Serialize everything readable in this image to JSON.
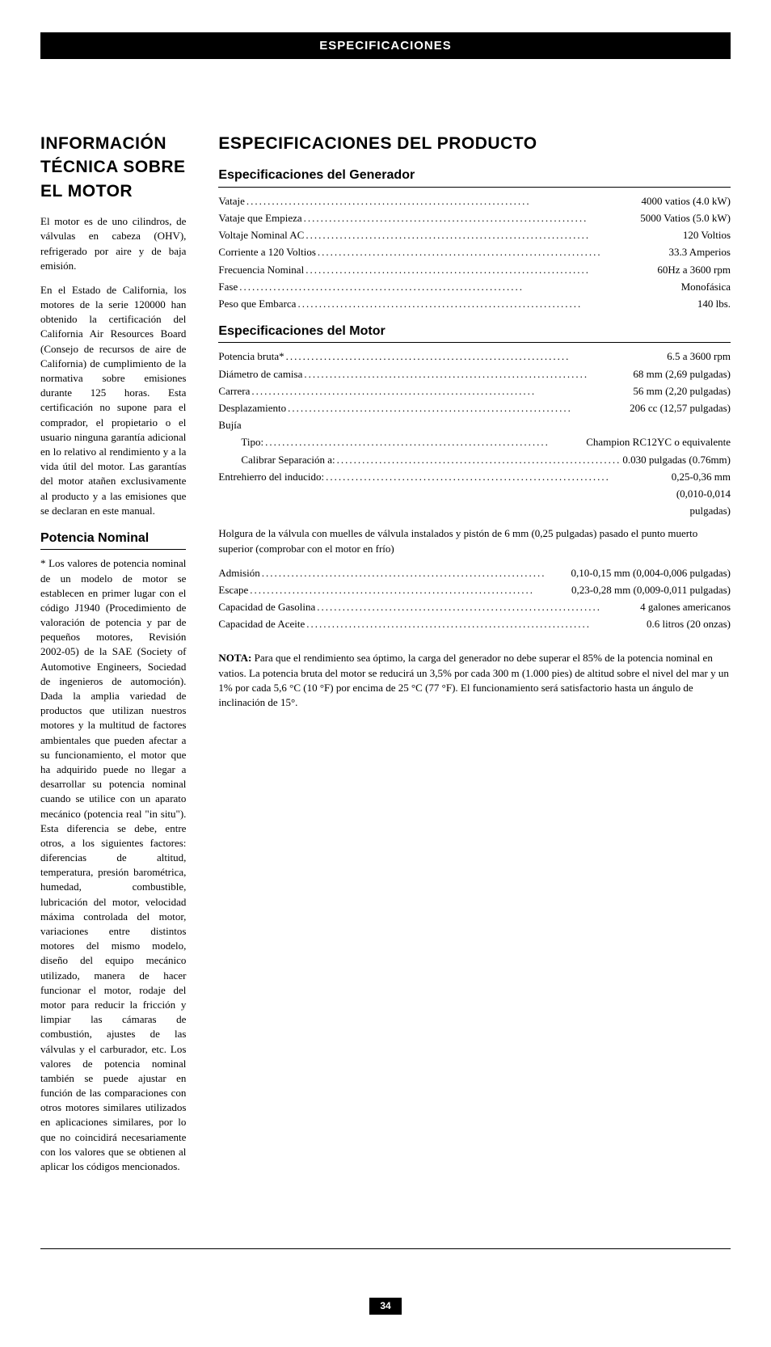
{
  "titleBar": "ESPECIFICACIONES",
  "left": {
    "h1": "INFORMACIÓN TÉCNICA SOBRE EL MOTOR",
    "p1": "El motor es de uno cilindros, de válvulas en cabeza (OHV), refrigerado por aire y de baja emisión.",
    "p2": "En el Estado de California, los motores de la serie 120000 han obtenido la certificación del California Air Resources Board (Consejo de recursos de aire de California) de cumplimiento de la normativa sobre emisiones durante 125 horas. Esta certificación no supone para el comprador, el propietario o el usuario ninguna garantía adicional en lo relativo al rendimiento y a la vida útil del motor. Las garantías del motor atañen exclusivamente al producto y a las emisiones que se declaran en este manual.",
    "h2": "Potencia Nominal",
    "p3": "* Los valores de potencia nominal de un modelo de motor se establecen en primer lugar con el código J1940 (Procedimiento de valoración de potencia y par de pequeños motores, Revisión 2002-05) de la SAE (Society of Automotive Engineers, Sociedad de ingenieros de automoción). Dada la amplia variedad de productos que utilizan nuestros motores y la multitud de factores ambientales que pueden afectar a su funcionamiento, el motor que ha adquirido puede no llegar a desarrollar su potencia nominal cuando se utilice con un aparato mecánico (potencia real \"in situ\"). Esta diferencia se debe, entre otros, a los siguientes factores: diferencias de altitud, temperatura, presión barométrica, humedad, combustible, lubricación del motor, velocidad máxima controlada del motor, variaciones entre distintos motores del mismo modelo, diseño del equipo mecánico utilizado, manera de hacer funcionar el motor, rodaje del motor para reducir la fricción y limpiar las cámaras de combustión, ajustes de las válvulas y el carburador, etc. Los valores de potencia nominal también se puede ajustar en función de las comparaciones con otros motores similares utilizados en aplicaciones similares, por lo que no coincidirá necesariamente con los valores que se obtienen al aplicar los códigos mencionados."
  },
  "right": {
    "h1": "ESPECIFICACIONES DEL PRODUCTO",
    "genH2": "Especificaciones del Generador",
    "gen": [
      {
        "label": "Vataje",
        "value": "4000 vatios (4.0 kW)"
      },
      {
        "label": "Vataje que Empieza",
        "value": "5000 Vatios (5.0 kW)"
      },
      {
        "label": "Voltaje Nominal AC",
        "value": "120 Voltios"
      },
      {
        "label": "Corriente a 120 Voltios",
        "value": "33.3 Amperios"
      },
      {
        "label": "Frecuencia Nominal",
        "value": "60Hz a 3600 rpm"
      },
      {
        "label": "Fase",
        "value": "Monofásica"
      },
      {
        "label": "Peso que Embarca",
        "value": "140 lbs."
      }
    ],
    "motH2": "Especificaciones del Motor",
    "mot1": [
      {
        "label": "Potencia bruta*",
        "value": "6.5 a 3600 rpm"
      },
      {
        "label": "Diámetro de camisa",
        "value": "68 mm (2,69 pulgadas)"
      },
      {
        "label": "Carrera",
        "value": "56 mm (2,20 pulgadas)"
      },
      {
        "label": "Desplazamiento",
        "value": "206 cc (12,57 pulgadas)"
      }
    ],
    "bujiaLabel": "Bujía",
    "bujia": [
      {
        "label": "Tipo:",
        "value": "Champion RC12YC o equivalente"
      },
      {
        "label": "Calibrar Separación a:",
        "value": "0.030 pulgadas (0.76mm)"
      }
    ],
    "entrehierro": {
      "label": "Entrehierro del inducido:",
      "value": "0,25-0,36 mm",
      "cont1": "(0,010-0,014",
      "cont2": "pulgadas)"
    },
    "holgura": "Holgura de la válvula con muelles de válvula instalados y pistón de 6 mm (0,25 pulgadas) pasado el punto muerto superior (comprobar con el motor en frío)",
    "mot2": [
      {
        "label": "Admisión",
        "value": "0,10-0,15 mm (0,004-0,006 pulgadas)"
      },
      {
        "label": "Escape",
        "value": "0,23-0,28 mm (0,009-0,011 pulgadas)"
      },
      {
        "label": "Capacidad de Gasolina",
        "value": "4 galones americanos"
      },
      {
        "label": "Capacidad de Aceite",
        "value": "0.6 litros (20 onzas)"
      }
    ],
    "noteLabel": "NOTA:",
    "noteText": " Para que el rendimiento sea óptimo, la carga del generador no debe superar el 85% de la potencia nominal en vatios. La potencia bruta del motor se reducirá un 3,5% por cada 300 m (1.000 pies) de altitud sobre el nivel del mar y un 1% por cada 5,6 °C (10 °F) por encima de 25 °C (77 °F). El funcionamiento será satisfactorio hasta un ángulo de inclinación de 15°."
  },
  "pageNum": "34"
}
